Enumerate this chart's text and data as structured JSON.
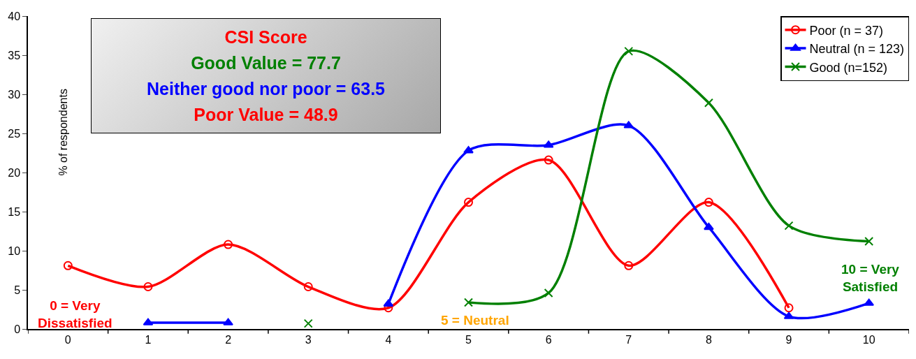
{
  "chart_data": {
    "type": "line",
    "ylabel": "% of respondents",
    "categories": [
      "0",
      "1",
      "2",
      "3",
      "4",
      "5",
      "6",
      "7",
      "8",
      "9",
      "10"
    ],
    "series": [
      {
        "name": "Poor (n = 37)",
        "color": "#ff0000",
        "marker": "circle",
        "values": [
          8.1,
          5.4,
          10.8,
          5.4,
          2.7,
          16.2,
          21.6,
          8.1,
          16.2,
          2.7,
          null
        ]
      },
      {
        "name": "Neutral (n = 123)",
        "color": "#0000ff",
        "marker": "triangle",
        "values": [
          null,
          0.8,
          0.8,
          null,
          3.2,
          22.8,
          23.5,
          26.0,
          13.0,
          1.6,
          3.3
        ]
      },
      {
        "name": "Good (n=152)",
        "color": "#008000",
        "marker": "cross",
        "values": [
          null,
          null,
          null,
          0.7,
          null,
          3.4,
          4.6,
          35.5,
          28.9,
          13.2,
          11.2
        ]
      }
    ],
    "ylim": [
      0,
      40
    ],
    "yticks": [
      0,
      5,
      10,
      15,
      20,
      25,
      30,
      35,
      40
    ],
    "grid": false,
    "legend": "top right",
    "annotations": [
      "CSI Score",
      "Good Value = 77.7",
      "Neither good nor poor = 63.5",
      "Poor Value = 48.9",
      "0 = Very\nDissatisfied",
      "5 = Neutral",
      "10 = Very\nSatisfied"
    ]
  }
}
